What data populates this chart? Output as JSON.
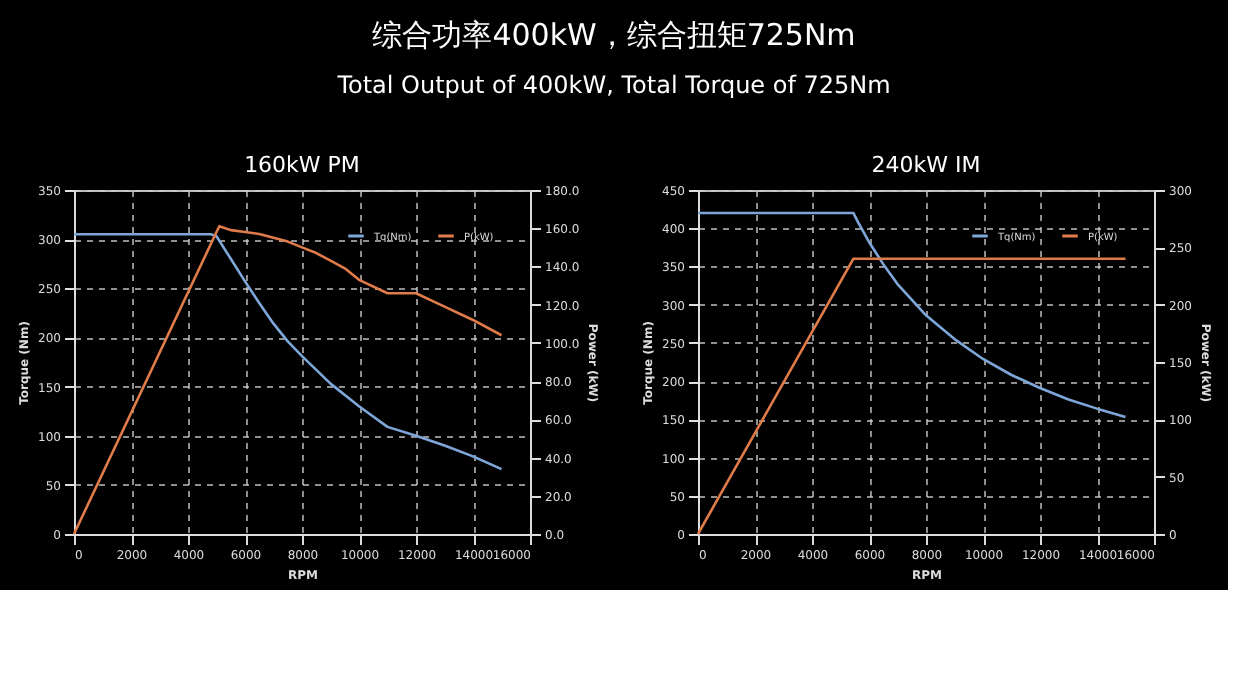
{
  "chart_data": [
    {
      "type": "line",
      "title": "160kW PM",
      "annotations": [
        "综合功率400kW，综合扭矩725Nm",
        "Total Output of 400kW, Total Torque of 725Nm"
      ],
      "xlabel": "RPM",
      "ylabel": "Torque (Nm)",
      "y2label": "Power (kW)",
      "xlim": [
        0,
        16000
      ],
      "xticks": [
        0,
        2000,
        4000,
        6000,
        8000,
        10000,
        12000,
        14000,
        16000
      ],
      "ylim": [
        0,
        350
      ],
      "yticks": [
        0,
        50,
        100,
        150,
        200,
        250,
        300,
        350
      ],
      "y2lim": [
        0,
        180
      ],
      "y2ticks": [
        {
          "value": 0,
          "label": "0.0"
        },
        {
          "value": 20,
          "label": "20.0"
        },
        {
          "value": 40,
          "label": "40.0"
        },
        {
          "value": 60,
          "label": "60.0"
        },
        {
          "value": 80,
          "label": "80.0"
        },
        {
          "value": 100,
          "label": "100.0"
        },
        {
          "value": 120,
          "label": "120.0"
        },
        {
          "value": 140,
          "label": "140.0"
        },
        {
          "value": 160,
          "label": "160.0"
        },
        {
          "value": 180,
          "label": "180.0"
        }
      ],
      "grid": true,
      "legend": "top right",
      "line_style": "solid",
      "marker": "none",
      "series": [
        {
          "name": "Tq(Nm)",
          "color": "#7ea6d8",
          "x": [
            0,
            4800,
            5000,
            5500,
            6000,
            6500,
            7000,
            7500,
            8000,
            9000,
            10000,
            11000,
            12000,
            13000,
            14000,
            15000
          ],
          "values": [
            305,
            305,
            303,
            280,
            257,
            235,
            214,
            196,
            181,
            153,
            130,
            109,
            100,
            90,
            79,
            66
          ]
        },
        {
          "name": "P(kW)",
          "color": "#e07b4a",
          "axis": "y2",
          "x": [
            0,
            5000,
            5100,
            5500,
            6000,
            6500,
            7000,
            7500,
            8000,
            8500,
            9000,
            9500,
            10000,
            11000,
            12000,
            13000,
            14000,
            15000
          ],
          "values": [
            0,
            158,
            161,
            159,
            158,
            157,
            155,
            153,
            150,
            147,
            143,
            139,
            133,
            126,
            126,
            119,
            112,
            104
          ]
        }
      ]
    },
    {
      "type": "line",
      "title": "240kW IM",
      "xlabel": "RPM",
      "ylabel": "Torque (Nm)",
      "y2label": "Power (kW)",
      "xlim": [
        0,
        16000
      ],
      "xticks": [
        0,
        2000,
        4000,
        6000,
        8000,
        10000,
        12000,
        14000,
        16000
      ],
      "ylim": [
        0,
        450
      ],
      "yticks": [
        0,
        50,
        100,
        150,
        200,
        250,
        300,
        350,
        400,
        450
      ],
      "y2lim": [
        0,
        300
      ],
      "y2ticks": [
        0,
        50,
        100,
        150,
        200,
        250,
        300
      ],
      "grid": true,
      "legend": "top right",
      "line_style": "solid",
      "marker": "none",
      "series": [
        {
          "name": "Tq(Nm)",
          "color": "#7ea6d8",
          "x": [
            0,
            5450,
            5600,
            6000,
            6500,
            7000,
            8000,
            9000,
            10000,
            11000,
            12000,
            13000,
            14000,
            15000
          ],
          "values": [
            420,
            420,
            409,
            382,
            353,
            327,
            286,
            255,
            229,
            208,
            191,
            176,
            164,
            153
          ]
        },
        {
          "name": "P(kW)",
          "color": "#e07b4a",
          "axis": "y2",
          "x": [
            0,
            5450,
            15000
          ],
          "values": [
            0,
            240,
            240
          ]
        }
      ]
    }
  ]
}
